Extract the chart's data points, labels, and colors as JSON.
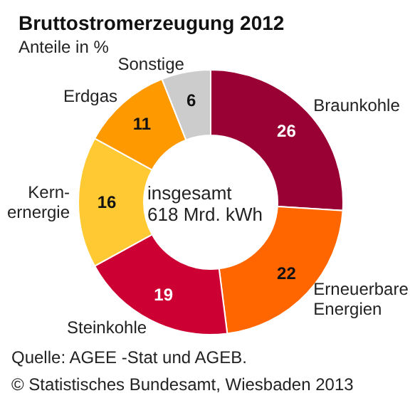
{
  "chart_data": {
    "type": "donut",
    "title": "Bruttostromerzeugung 2012",
    "subtitle": "Anteile in %",
    "categories": [
      "Braunkohle",
      "Erneuerbare\nEnergien",
      "Steinkohle",
      "Kern-\nernergie",
      "Erdgas",
      "Sonstige"
    ],
    "values": [
      26,
      22,
      19,
      16,
      11,
      6
    ],
    "colors": [
      "#990033",
      "#ff6600",
      "#cc0033",
      "#ffc933",
      "#ff9900",
      "#cccccc"
    ],
    "data_labels": true,
    "legend": false,
    "annotations": [
      "insgesamt\n618 Mrd. kWh",
      "Quelle: AGEE -Stat und AGEB.",
      "© Statistisches Bundesamt, Wiesbaden 2013"
    ]
  }
}
